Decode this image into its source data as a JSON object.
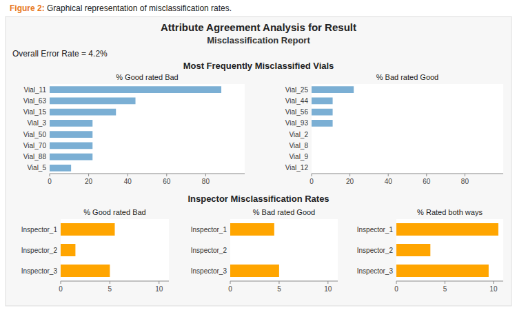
{
  "title": "Attribute Agreement Analysis for Result",
  "subtitle": "Misclassification Report",
  "annotations": [
    {
      "text": "Figure 2:",
      "color": "#E87722"
    },
    {
      "text": " Graphical representation of misclassification rates."
    },
    {
      "text": "Overall Error Rate = 4.2%"
    },
    {
      "text": "Most Frequently Misclassified Vials"
    },
    {
      "text": "Inspector Misclassification Rates"
    }
  ],
  "chart_data": [
    {
      "type": "bar",
      "orientation": "horizontal",
      "title": "% Good rated Bad",
      "categories": [
        "Vial_11",
        "Vial_63",
        "Vial_15",
        "Vial_3",
        "Vial_50",
        "Vial_70",
        "Vial_88",
        "Vial_5"
      ],
      "values": [
        88,
        44,
        34,
        22,
        22,
        22,
        22,
        11
      ],
      "color": "#7bafd4",
      "xlim": [
        0,
        100
      ],
      "xticks": [
        0,
        20,
        40,
        60,
        80
      ],
      "grid": false
    },
    {
      "type": "bar",
      "orientation": "horizontal",
      "title": "% Bad rated Good",
      "categories": [
        "Vial_25",
        "Vial_44",
        "Vial_56",
        "Vial_93",
        "Vial_2",
        "Vial_8",
        "Vial_9",
        "Vial_12"
      ],
      "values": [
        22,
        11,
        11,
        11,
        0,
        0,
        0,
        0
      ],
      "color": "#7bafd4",
      "xlim": [
        0,
        100
      ],
      "xticks": [
        0,
        20,
        40,
        60,
        80
      ],
      "grid": false
    },
    {
      "type": "bar",
      "orientation": "horizontal",
      "title": "% Good rated Bad",
      "categories": [
        "Inspector_1",
        "Inspector_2",
        "Inspector_3"
      ],
      "values": [
        5.5,
        1.5,
        5.0
      ],
      "color": "#FFA500",
      "xlim": [
        0,
        11
      ],
      "xticks": [
        0,
        5,
        10
      ],
      "grid": false
    },
    {
      "type": "bar",
      "orientation": "horizontal",
      "title": "% Bad rated Good",
      "categories": [
        "Inspector_1",
        "Inspector_2",
        "Inspector_3"
      ],
      "values": [
        4.5,
        0,
        5.0
      ],
      "color": "#FFA500",
      "xlim": [
        0,
        11
      ],
      "xticks": [
        0,
        5,
        10
      ],
      "grid": false
    },
    {
      "type": "bar",
      "orientation": "horizontal",
      "title": "% Rated both ways",
      "categories": [
        "Inspector_1",
        "Inspector_2",
        "Inspector_3"
      ],
      "values": [
        10.5,
        3.5,
        9.5
      ],
      "color": "#FFA500",
      "xlim": [
        0,
        11
      ],
      "xticks": [
        0,
        5,
        10
      ],
      "grid": false
    }
  ]
}
